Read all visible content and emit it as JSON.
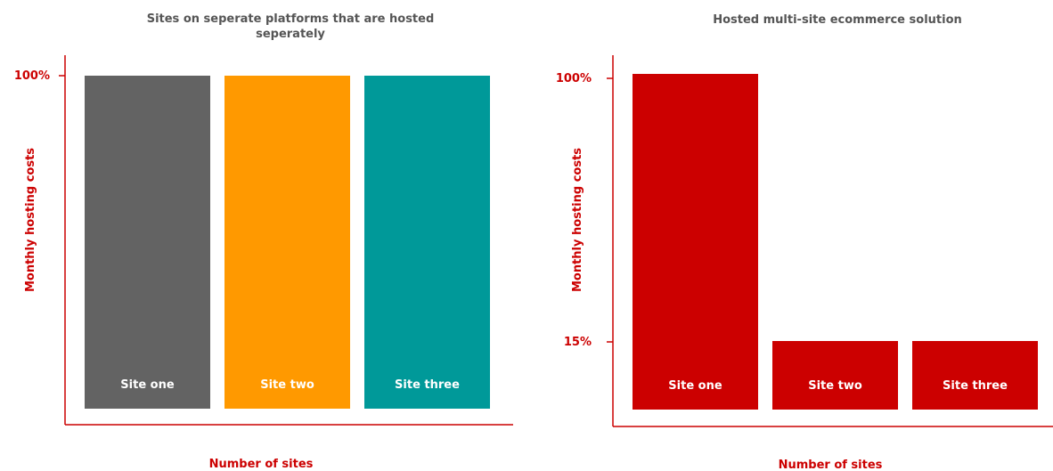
{
  "chart_data": [
    {
      "type": "bar",
      "title": "Sites on seperate platforms that are hosted seperately",
      "title_lines": [
        "Sites on seperate platforms that are hosted",
        "seperately"
      ],
      "xlabel": "Number of sites",
      "ylabel": "Monthly hosting costs",
      "y_ticks": [
        "100%"
      ],
      "categories": [
        "Site one",
        "Site two",
        "Site three"
      ],
      "values": [
        100,
        100,
        100
      ],
      "ylim": [
        0,
        100
      ],
      "colors": [
        "#636363",
        "#ff9900",
        "#009999"
      ],
      "axis_color": "#cc0000"
    },
    {
      "type": "bar",
      "title": "Hosted multi-site ecommerce solution",
      "title_lines": [
        "Hosted multi-site ecommerce solution"
      ],
      "xlabel": "Number of sites",
      "ylabel": "Monthly hosting costs",
      "y_ticks": [
        "100%",
        "15%"
      ],
      "categories": [
        "Site one",
        "Site two",
        "Site three"
      ],
      "values": [
        100,
        15,
        15
      ],
      "ylim": [
        0,
        100
      ],
      "colors": [
        "#cc0000",
        "#cc0000",
        "#cc0000"
      ],
      "axis_color": "#cc0000"
    }
  ]
}
